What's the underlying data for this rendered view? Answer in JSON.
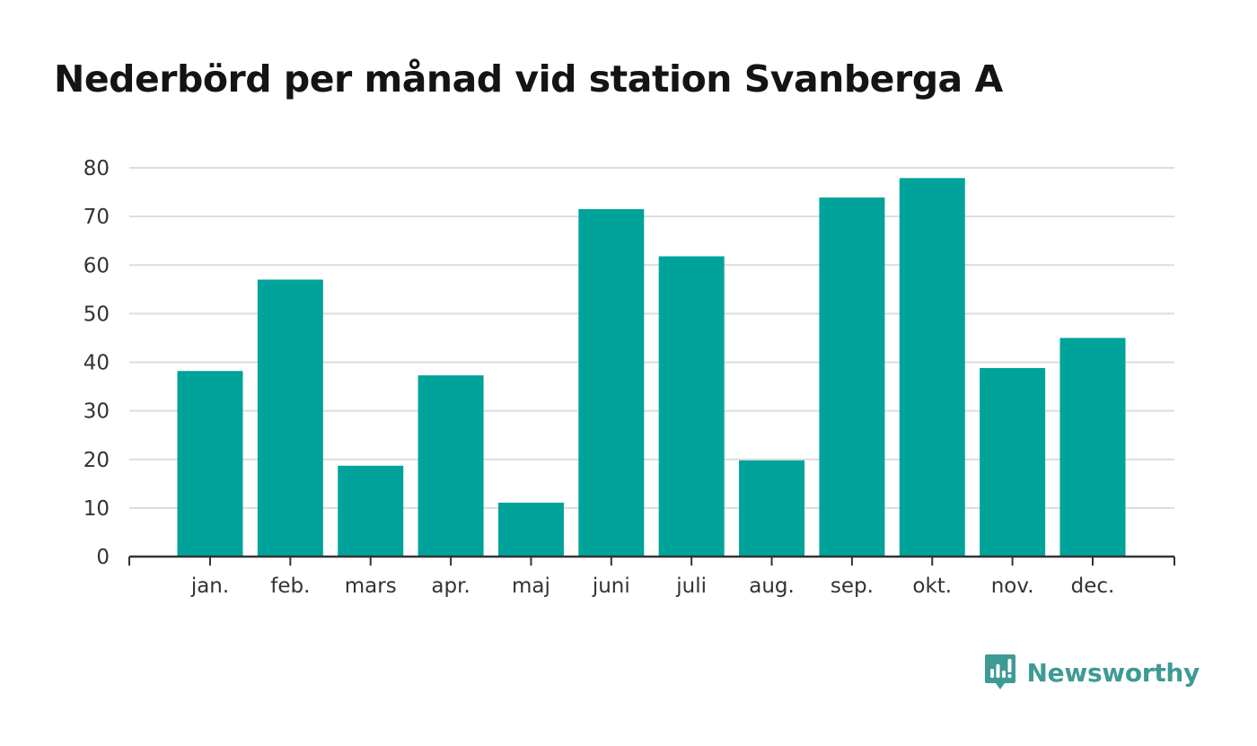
{
  "chart_data": {
    "type": "bar",
    "title": "Nederbörd per månad vid station Svanberga A",
    "xlabel": "",
    "ylabel": "",
    "categories": [
      "jan.",
      "feb.",
      "mars",
      "apr.",
      "maj",
      "juni",
      "juli",
      "aug.",
      "sep.",
      "okt.",
      "nov.",
      "dec."
    ],
    "values": [
      38.2,
      57.0,
      18.7,
      37.3,
      11.1,
      71.5,
      61.8,
      19.8,
      73.9,
      77.9,
      38.8,
      45.0
    ],
    "ylim": [
      0,
      80
    ],
    "yticks": [
      0,
      10,
      20,
      30,
      40,
      50,
      60,
      70,
      80
    ],
    "grid": true,
    "legend": "none",
    "bar_color": "#00a39a",
    "grid_color": "#dddddd",
    "axis_color": "#333333"
  },
  "branding": {
    "name": "Newsworthy",
    "icon": "newsworthy-logo-icon",
    "color": "#3d9b94"
  }
}
